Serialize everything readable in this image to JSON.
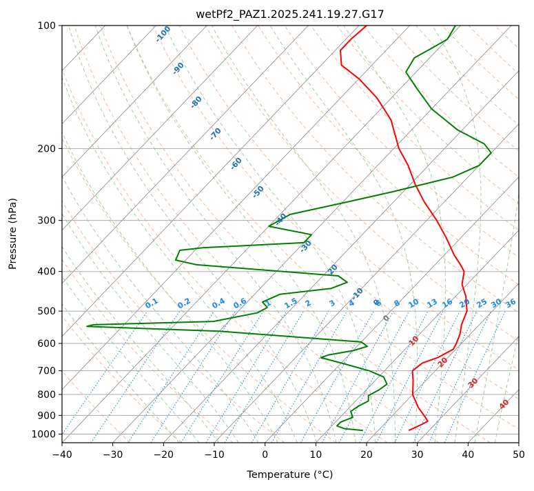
{
  "colors": {
    "temperature": "#ff0000",
    "dewpoint": "#008000",
    "isobar": "#aaaaaa",
    "isotherm": "#888888",
    "dry_adiabat": "#f4a582",
    "moist_adiabat": "#7fbf7b",
    "mixing_ratio": "#1e88e5",
    "isotherm_label": "#1f6fb5",
    "height_label": "#d62728",
    "frame": "#000000"
  },
  "chart_data": {
    "type": "line",
    "subtype": "skew-T log-P",
    "title": "wetPf2_PAZ1.2025.241.19.27.G17",
    "xlabel": "Temperature (°C)",
    "ylabel": "Pressure (hPa)",
    "xlim": [
      -40,
      50
    ],
    "ylim": [
      1050,
      100
    ],
    "y_scale": "log",
    "grid": true,
    "x_ticks": [
      "−40",
      "−30",
      "−20",
      "−10",
      "0",
      "10",
      "20",
      "30",
      "40",
      "50"
    ],
    "y_ticks": [
      "100",
      "200",
      "300",
      "400",
      "500",
      "600",
      "700",
      "800",
      "900",
      "1000"
    ],
    "isotherm_labels": [
      "-100",
      "-90",
      "-80",
      "-70",
      "-60",
      "-50",
      "-40",
      "-30",
      "-20",
      "-10",
      "0"
    ],
    "mixing_ratio_labels": [
      "0.1",
      "0.2",
      "0.4",
      "0.6",
      "1",
      "1.5",
      "2",
      "3",
      "4",
      "6",
      "8",
      "10",
      "13",
      "16",
      "20",
      "25",
      "30",
      "36"
    ],
    "height_labels": [
      "0",
      "10",
      "20",
      "30",
      "40"
    ],
    "series": [
      {
        "label": "temperature",
        "points": [
          [
            26.0,
            980
          ],
          [
            27.5,
            945
          ],
          [
            28.0,
            930
          ],
          [
            26.5,
            905
          ],
          [
            23.5,
            860
          ],
          [
            20.0,
            800
          ],
          [
            17.5,
            740
          ],
          [
            15.5,
            700
          ],
          [
            16.0,
            670
          ],
          [
            18.0,
            650
          ],
          [
            19.5,
            620
          ],
          [
            19.0,
            600
          ],
          [
            18.0,
            570
          ],
          [
            16.5,
            540
          ],
          [
            15.0,
            500
          ],
          [
            12.0,
            460
          ],
          [
            9.0,
            430
          ],
          [
            7.0,
            400
          ],
          [
            5.0,
            385
          ],
          [
            2.0,
            365
          ],
          [
            -3.0,
            330
          ],
          [
            -8.0,
            300
          ],
          [
            -14.0,
            270
          ],
          [
            -19.0,
            245
          ],
          [
            -24.0,
            220
          ],
          [
            -29.0,
            200
          ],
          [
            -36.0,
            170
          ],
          [
            -43.0,
            150
          ],
          [
            -50.0,
            135
          ],
          [
            -56.0,
            125
          ],
          [
            -59.0,
            115
          ],
          [
            -59.0,
            108
          ],
          [
            -58.5,
            100
          ]
        ]
      },
      {
        "label": "dewpoint",
        "points": [
          [
            17.0,
            980
          ],
          [
            13.0,
            970
          ],
          [
            11.0,
            955
          ],
          [
            11.0,
            935
          ],
          [
            12.5,
            910
          ],
          [
            11.0,
            880
          ],
          [
            11.5,
            855
          ],
          [
            12.5,
            830
          ],
          [
            11.5,
            805
          ],
          [
            12.5,
            780
          ],
          [
            13.0,
            755
          ],
          [
            11.0,
            725
          ],
          [
            7.0,
            700
          ],
          [
            0.0,
            670
          ],
          [
            -5.0,
            650
          ],
          [
            -4.0,
            640
          ],
          [
            0.0,
            625
          ],
          [
            2.0,
            610
          ],
          [
            0.0,
            595
          ],
          [
            -30.0,
            560
          ],
          [
            -57.0,
            545
          ],
          [
            -56.0,
            540
          ],
          [
            -33.0,
            530
          ],
          [
            -26.0,
            505
          ],
          [
            -25.0,
            490
          ],
          [
            -27.0,
            475
          ],
          [
            -25.0,
            455
          ],
          [
            -16.0,
            440
          ],
          [
            -14.0,
            425
          ],
          [
            -17.0,
            410
          ],
          [
            -47.0,
            385
          ],
          [
            -52.0,
            375
          ],
          [
            -53.0,
            355
          ],
          [
            -49.0,
            350
          ],
          [
            -30.0,
            340
          ],
          [
            -30.0,
            325
          ],
          [
            -40.0,
            310
          ],
          [
            -38.0,
            290
          ],
          [
            -29.0,
            270
          ],
          [
            -22.0,
            255
          ],
          [
            -13.0,
            235
          ],
          [
            -10.0,
            220
          ],
          [
            -10.0,
            205
          ],
          [
            -13.0,
            195
          ],
          [
            -21.0,
            180
          ],
          [
            -30.0,
            160
          ],
          [
            -37.0,
            142
          ],
          [
            -42.0,
            130
          ],
          [
            -43.0,
            120
          ],
          [
            -41.0,
            112
          ],
          [
            -40.0,
            108
          ],
          [
            -41.0,
            100
          ]
        ]
      }
    ]
  }
}
